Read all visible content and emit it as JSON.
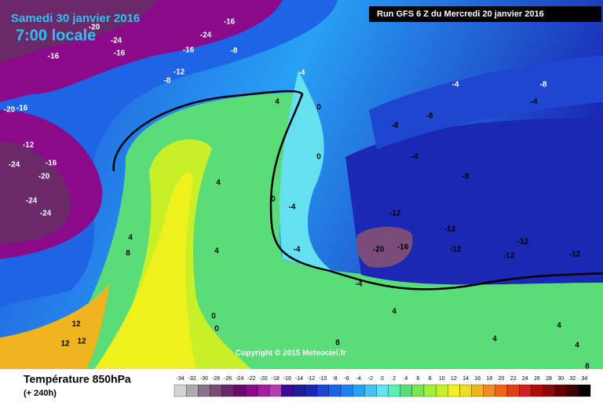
{
  "header": {
    "date": "Samedi 30 janvier 2016",
    "time": "7:00 locale",
    "run": "Run GFS 6 Z du Mercredi 20 janvier 2016"
  },
  "footer": {
    "title": "Température 850hPa",
    "lead": "(+ 240h)",
    "copyright": "Copyright © 2015 Meteociel.fr"
  },
  "scale": {
    "values": [
      -34,
      -32,
      -30,
      -28,
      -26,
      -24,
      -22,
      -20,
      -18,
      -16,
      -14,
      -12,
      -10,
      -8,
      -6,
      -4,
      -2,
      0,
      2,
      4,
      6,
      8,
      10,
      12,
      14,
      16,
      18,
      20,
      22,
      24,
      26,
      28,
      30,
      32,
      34
    ],
    "colors": [
      "#d4d4d4",
      "#ababab",
      "#8c708c",
      "#7a4c7a",
      "#6a2a6a",
      "#6c0a6c",
      "#8a0a8a",
      "#a01ea0",
      "#b43cb4",
      "#3c0a96",
      "#1e1e96",
      "#1a28b4",
      "#1e46d2",
      "#1e64e6",
      "#1e82f0",
      "#28a0f5",
      "#46c3f5",
      "#64e1f0",
      "#5af0b4",
      "#5adc78",
      "#78e650",
      "#a0f03c",
      "#c8f028",
      "#f0f01e",
      "#f0dc1e",
      "#f0b41e",
      "#f08c1e",
      "#f06414",
      "#e63c14",
      "#d21e1e",
      "#b40a0a",
      "#8c0a0a",
      "#640000",
      "#3c0000",
      "#000000"
    ]
  },
  "contour_labels": [
    -24,
    -16,
    -24,
    -20,
    -16,
    -16,
    -16,
    -8,
    -12,
    -8,
    -4,
    -4,
    -8,
    -4,
    -8,
    -8,
    -4,
    -8,
    -16,
    -20,
    4,
    0,
    0,
    -12,
    -24,
    -16,
    -20,
    -24,
    -24,
    4,
    0,
    -4,
    -12,
    -12,
    -20,
    -16,
    -12,
    -12,
    -12,
    -12,
    4,
    8,
    4,
    -4,
    -4,
    4,
    0,
    0,
    12,
    12,
    12,
    8,
    4,
    4,
    4,
    8
  ]
}
